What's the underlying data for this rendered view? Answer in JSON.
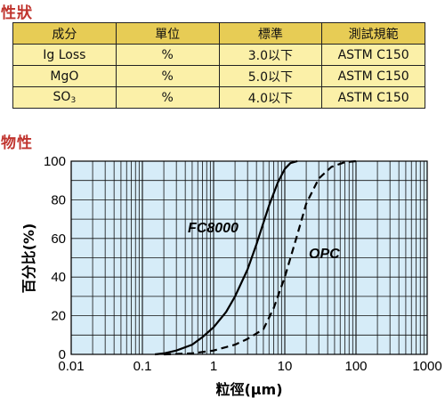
{
  "section1_title": "性狀",
  "section2_title": "物性",
  "spec_table": {
    "headers": [
      "成分",
      "單位",
      "標準",
      "測試規範"
    ],
    "rows": [
      [
        "Ig Loss",
        "%",
        "3.0以下",
        "ASTM C150"
      ],
      [
        "MgO",
        "%",
        "5.0以下",
        "ASTM C150"
      ],
      [
        "SO",
        "%",
        "4.0以下",
        "ASTM C150"
      ]
    ],
    "so3_subscript": "3"
  },
  "chart_data": {
    "type": "line",
    "xlabel": "粒徑(μm)",
    "ylabel": "百分比(%)",
    "xscale": "log",
    "xlim": [
      0.01,
      1000
    ],
    "ylim": [
      0,
      100
    ],
    "x_ticks": [
      "0.01",
      "0.1",
      "1",
      "10",
      "100",
      "1000"
    ],
    "y_ticks": [
      "0",
      "20",
      "40",
      "60",
      "80",
      "100"
    ],
    "grid": true,
    "plot_background": "#d6ecf8",
    "series": [
      {
        "name": "FC8000",
        "style": "solid",
        "points": [
          [
            0.15,
            0
          ],
          [
            0.2,
            0.5
          ],
          [
            0.3,
            2
          ],
          [
            0.5,
            5
          ],
          [
            0.7,
            9
          ],
          [
            1.0,
            14
          ],
          [
            1.5,
            22
          ],
          [
            2,
            30
          ],
          [
            3,
            44
          ],
          [
            4,
            57
          ],
          [
            5,
            68
          ],
          [
            6,
            77
          ],
          [
            8,
            89
          ],
          [
            10,
            96
          ],
          [
            12,
            99
          ],
          [
            15,
            100
          ]
        ]
      },
      {
        "name": "OPC",
        "style": "dashed",
        "points": [
          [
            0.2,
            0
          ],
          [
            0.5,
            0.5
          ],
          [
            1,
            2
          ],
          [
            2,
            5
          ],
          [
            3,
            8
          ],
          [
            5,
            13
          ],
          [
            7,
            24
          ],
          [
            10,
            40
          ],
          [
            15,
            62
          ],
          [
            20,
            78
          ],
          [
            30,
            91
          ],
          [
            45,
            97
          ],
          [
            70,
            99.5
          ],
          [
            100,
            100
          ]
        ]
      }
    ]
  }
}
